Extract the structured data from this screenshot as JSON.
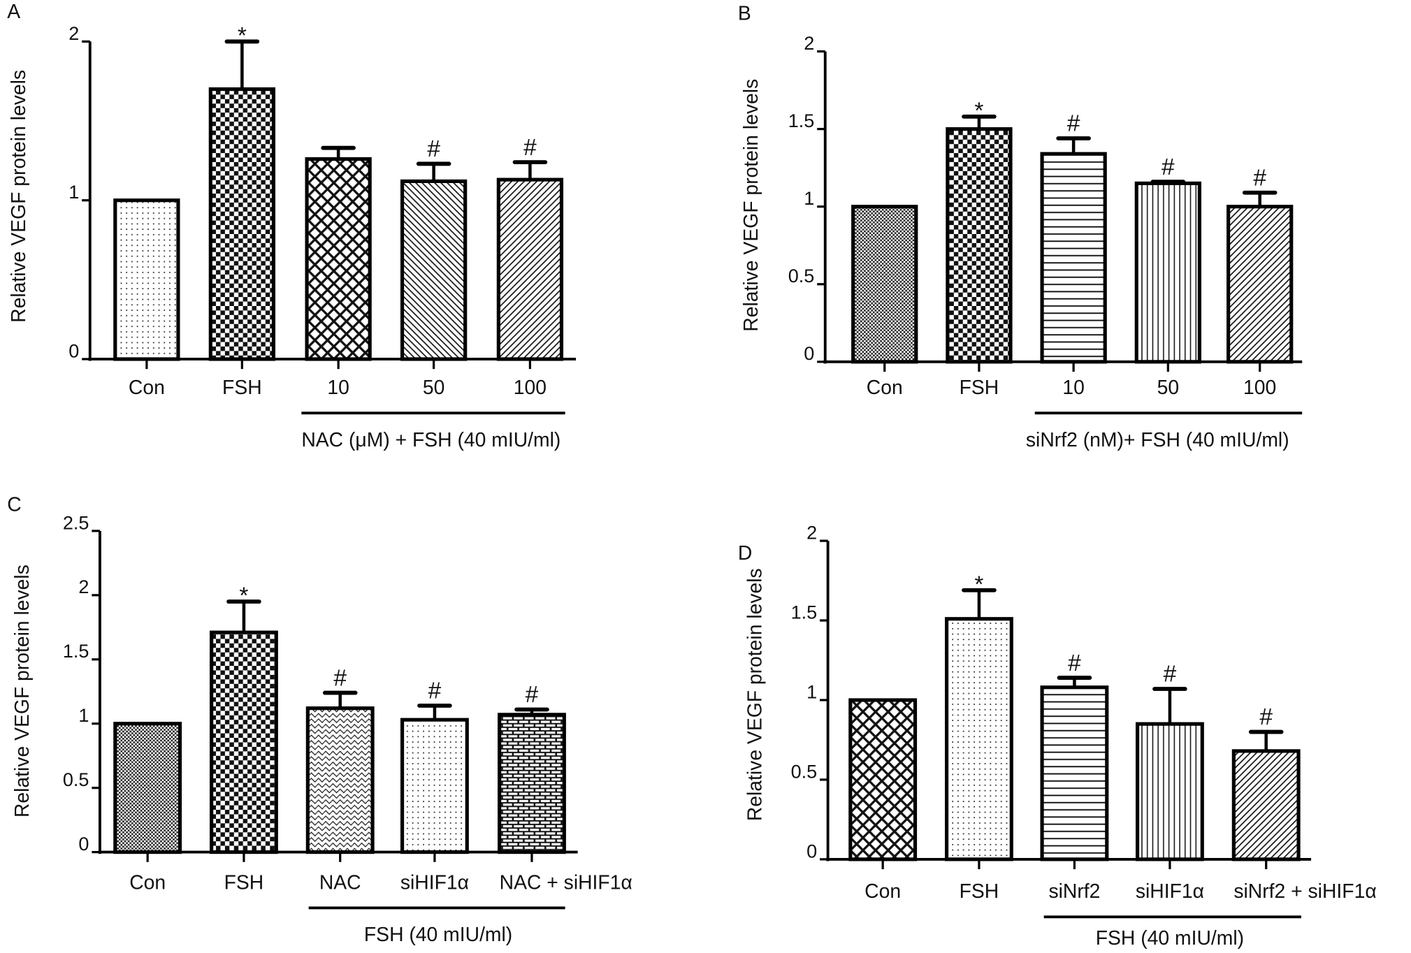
{
  "chart_data": [
    {
      "panel": "A",
      "type": "bar",
      "ylabel": "Relative VEGF protein levels",
      "ylim": [
        0,
        2
      ],
      "yticks": [
        "0",
        "1",
        "2"
      ],
      "categories": [
        "Con",
        "FSH",
        "10",
        "50",
        "100"
      ],
      "values": [
        1.0,
        1.7,
        1.26,
        1.12,
        1.13
      ],
      "errors": [
        0,
        0.3,
        0.07,
        0.11,
        0.11
      ],
      "significance": [
        "",
        "*",
        "",
        "#",
        "#"
      ],
      "patterns": [
        "dots",
        "checker",
        "crosshatch",
        "diag-back",
        "diag-fwd"
      ],
      "group_label": "NAC (μM) +  FSH (40 mIU/ml)",
      "group_span": [
        2,
        4
      ],
      "grid": false
    },
    {
      "panel": "B",
      "type": "bar",
      "ylabel": "Relative VEGF protein levels",
      "ylim": [
        0,
        2
      ],
      "yticks": [
        "0",
        "0.5",
        "1",
        "1.5",
        "2"
      ],
      "categories": [
        "Con",
        "FSH",
        "10",
        "50",
        "100"
      ],
      "values": [
        1.0,
        1.5,
        1.34,
        1.15,
        1.0
      ],
      "errors": [
        0,
        0.08,
        0.1,
        0.01,
        0.09
      ],
      "significance": [
        "",
        "*",
        "#",
        "#",
        "#"
      ],
      "patterns": [
        "fine-checker",
        "checker",
        "horizontal",
        "vertical",
        "diag-fwd"
      ],
      "group_label": "siNrf2 (nM)+  FSH (40 mIU/ml)",
      "group_span": [
        2,
        4
      ],
      "grid": false
    },
    {
      "panel": "C",
      "type": "bar",
      "ylabel": "Relative VEGF protein levels",
      "ylim": [
        0,
        2.5
      ],
      "yticks": [
        "0",
        "0.5",
        "1",
        "1.5",
        "2",
        "2.5"
      ],
      "categories": [
        "Con",
        "FSH",
        "NAC",
        "siHIF1α",
        "NAC + siHIF1α"
      ],
      "values": [
        1.0,
        1.71,
        1.12,
        1.03,
        1.07
      ],
      "errors": [
        0,
        0.24,
        0.12,
        0.11,
        0.04
      ],
      "significance": [
        "",
        "*",
        "#",
        "#",
        "#"
      ],
      "patterns": [
        "fine-checker",
        "checker",
        "wave",
        "dots",
        "bricks"
      ],
      "group_label": "FSH (40 mIU/ml)",
      "group_span": [
        2,
        4
      ],
      "grid": false
    },
    {
      "panel": "D",
      "type": "bar",
      "ylabel": "Relative VEGF protein levels",
      "ylim": [
        0,
        2
      ],
      "yticks": [
        "0",
        "0.5",
        "1",
        "1.5",
        "2"
      ],
      "categories": [
        "Con",
        "FSH",
        "siNrf2",
        "siHIF1α",
        "siNrf2 + siHIF1α"
      ],
      "values": [
        1.0,
        1.51,
        1.08,
        0.85,
        0.68
      ],
      "errors": [
        0,
        0.18,
        0.06,
        0.22,
        0.12
      ],
      "significance": [
        "",
        "*",
        "#",
        "#",
        "#"
      ],
      "patterns": [
        "crosshatch",
        "dots",
        "horizontal",
        "vertical",
        "diag-fwd"
      ],
      "group_label": "FSH (40 mIU/ml)",
      "group_span": [
        2,
        4
      ],
      "grid": false
    }
  ]
}
